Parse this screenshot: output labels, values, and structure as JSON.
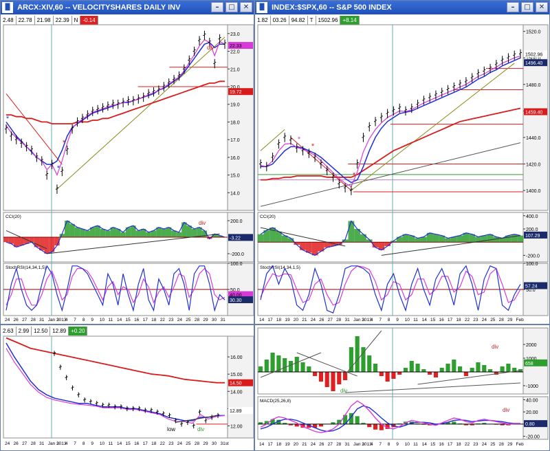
{
  "windows": [
    {
      "id": "xiv",
      "title": "ARCX:XIV,60 -- VELOCITYSHARES DAILY INV",
      "ohlc": [
        "2.48",
        "22.78",
        "21.98",
        "22.39",
        "N",
        "-0.14"
      ]
    },
    {
      "id": "spx",
      "title": "INDEX:$SPX,60 -- S&P 500 INDEX",
      "ohlc": [
        "1.82",
        "03.26",
        "94.82",
        "T",
        "1502.96",
        "+8.14"
      ]
    },
    {
      "id": "vix",
      "title": "",
      "ohlc": [
        "2.63",
        "2.99",
        "12.50",
        "12.89",
        "+0.20"
      ]
    }
  ],
  "colors": {
    "price": "#000000",
    "ma_blue": "#1f2fd8",
    "ma_pink": "#d83ad8",
    "ma_red": "#d81c1c",
    "trend_olive": "#8a8a1a",
    "hist_green": "#2e9e2e",
    "hist_red": "#e02020",
    "cyan": "#5fb0b0"
  },
  "chart_data": [
    {
      "type": "line",
      "panel": "xiv-price",
      "title": "ARCX:XIV,60 -- VELOCITYSHARES DAILY INV",
      "ylim": [
        13,
        23.5
      ],
      "yticks": [
        14.0,
        15.0,
        16.0,
        17.0,
        18.0,
        19.0,
        20.0,
        21.0,
        22.0,
        23.0
      ],
      "price_labels": [
        "22.33",
        "19.72"
      ],
      "annotations": [
        "div"
      ],
      "price": [
        17.6,
        17.2,
        17.0,
        16.8,
        16.6,
        16.4,
        16.0,
        15.8,
        15.0,
        15.6,
        14.2,
        15.2,
        16.4,
        17.6,
        18.0,
        18.2,
        18.4,
        18.6,
        18.7,
        18.8,
        18.9,
        19.0,
        19.0,
        19.1,
        19.2,
        19.2,
        19.3,
        19.4,
        19.6,
        19.7,
        19.8,
        20.0,
        20.2,
        20.4,
        20.6,
        21.0,
        21.5,
        22.0,
        22.6,
        22.9,
        22.5,
        21.3,
        22.7,
        22.4
      ],
      "ma_blue": [
        18.0,
        17.6,
        17.2,
        16.9,
        16.6,
        16.3,
        16.0,
        15.8,
        15.6,
        15.6,
        15.8,
        16.4,
        17.2,
        17.7,
        17.9,
        18.1,
        18.3,
        18.5,
        18.6,
        18.7,
        18.8,
        18.9,
        19.0,
        19.1,
        19.1,
        19.2,
        19.3,
        19.4,
        19.5,
        19.6,
        19.8,
        19.9,
        20.1,
        20.3,
        20.5,
        20.8,
        21.2,
        21.6,
        22.0,
        22.4,
        22.5,
        22.2,
        22.4,
        22.4
      ],
      "ma_red": [
        18.4,
        18.4,
        18.3,
        18.3,
        18.2,
        18.2,
        18.1,
        18.0,
        18.0,
        17.9,
        17.9,
        17.9,
        17.9,
        17.9,
        18.0,
        18.0,
        18.0,
        18.1,
        18.1,
        18.2,
        18.2,
        18.3,
        18.4,
        18.5,
        18.6,
        18.7,
        18.8,
        18.9,
        19.0,
        19.1,
        19.2,
        19.3,
        19.4,
        19.5,
        19.6,
        19.7,
        19.8,
        19.9,
        20.0,
        20.1,
        20.2,
        20.2,
        20.3,
        20.3
      ]
    },
    {
      "type": "area",
      "panel": "xiv-cci",
      "title": "CCI(20)",
      "ylim": [
        -300,
        300
      ],
      "yticks": [
        200.0,
        -200.0
      ],
      "price_labels": [
        "-3.22"
      ],
      "annotations": [
        "div"
      ],
      "values": [
        -60,
        -80,
        -120,
        -100,
        -80,
        -60,
        -120,
        -160,
        -200,
        -180,
        -100,
        40,
        200,
        160,
        120,
        100,
        80,
        120,
        140,
        100,
        80,
        120,
        100,
        60,
        120,
        140,
        80,
        100,
        60,
        80,
        120,
        100,
        120,
        80,
        60,
        180,
        140,
        100,
        120,
        80,
        -20,
        40,
        20,
        0
      ]
    },
    {
      "type": "line",
      "panel": "xiv-stochrsi",
      "title": "StochRSI(14,34,1,5)",
      "ylim": [
        0,
        100
      ],
      "yticks": [
        100.0,
        50.0
      ],
      "price_labels": [
        "40.00",
        "30.30"
      ],
      "values": [
        10,
        60,
        90,
        50,
        20,
        10,
        20,
        60,
        95,
        80,
        40,
        10,
        50,
        95,
        95,
        90,
        80,
        60,
        40,
        20,
        80,
        60,
        20,
        80,
        40,
        10,
        60,
        90,
        30,
        10,
        70,
        50,
        20,
        80,
        90,
        60,
        10,
        80,
        95,
        95,
        60,
        10,
        40,
        30
      ],
      "signal": [
        20,
        40,
        70,
        70,
        40,
        20,
        20,
        40,
        70,
        85,
        60,
        30,
        40,
        75,
        90,
        90,
        85,
        70,
        50,
        30,
        55,
        65,
        40,
        55,
        50,
        25,
        40,
        70,
        55,
        25,
        45,
        55,
        35,
        55,
        80,
        75,
        35,
        50,
        80,
        90,
        80,
        40,
        30,
        35
      ],
      "xticks": [
        "24",
        "26",
        "27",
        "28",
        "31",
        "Jan 2013",
        "3",
        "4",
        "7",
        "8",
        "9",
        "10",
        "11",
        "14",
        "15",
        "16",
        "17",
        "18",
        "22",
        "23",
        "24",
        "25",
        "28",
        "29",
        "30",
        "31"
      ]
    },
    {
      "type": "line",
      "panel": "spx-price",
      "title": "INDEX:$SPX,60 -- S&P 500 INDEX",
      "ylim": [
        1385,
        1525
      ],
      "yticks": [
        1400.0,
        1420.0,
        1440.0,
        1460.0,
        1480.0,
        1500.0,
        1520.0
      ],
      "price_labels": [
        "1502.96",
        "1496.40",
        "1459.40"
      ],
      "price": [
        1420,
        1418,
        1425,
        1435,
        1440,
        1438,
        1432,
        1430,
        1428,
        1425,
        1420,
        1415,
        1410,
        1405,
        1402,
        1400,
        1420,
        1440,
        1448,
        1452,
        1455,
        1458,
        1460,
        1462,
        1460,
        1462,
        1465,
        1468,
        1470,
        1472,
        1474,
        1476,
        1478,
        1480,
        1482,
        1485,
        1488,
        1490,
        1492,
        1495,
        1498,
        1500,
        1502,
        1503
      ],
      "ma_blue": [
        1418,
        1418,
        1420,
        1425,
        1430,
        1433,
        1433,
        1432,
        1430,
        1428,
        1425,
        1421,
        1417,
        1413,
        1409,
        1406,
        1408,
        1418,
        1430,
        1440,
        1447,
        1452,
        1455,
        1458,
        1459,
        1460,
        1462,
        1464,
        1466,
        1468,
        1470,
        1472,
        1474,
        1476,
        1478,
        1481,
        1484,
        1486,
        1489,
        1491,
        1494,
        1496,
        1498,
        1500
      ],
      "ma_red": [
        1408,
        1408,
        1409,
        1409,
        1410,
        1410,
        1411,
        1411,
        1411,
        1411,
        1411,
        1410,
        1410,
        1410,
        1410,
        1410,
        1412,
        1415,
        1418,
        1421,
        1424,
        1427,
        1430,
        1432,
        1434,
        1436,
        1438,
        1440,
        1442,
        1444,
        1446,
        1448,
        1450,
        1452,
        1453,
        1454,
        1455,
        1456,
        1457,
        1458,
        1459,
        1460,
        1461,
        1462
      ]
    },
    {
      "type": "area",
      "panel": "spx-cci",
      "title": "CCI(20)",
      "ylim": [
        -300,
        450
      ],
      "yticks": [
        400.0,
        200.0,
        -200.0
      ],
      "price_labels": [
        "107.29"
      ],
      "values": [
        120,
        180,
        220,
        160,
        100,
        60,
        -40,
        -120,
        -160,
        -200,
        -140,
        -80,
        -60,
        -40,
        40,
        320,
        200,
        120,
        40,
        -80,
        -120,
        -60,
        20,
        80,
        120,
        100,
        60,
        80,
        140,
        120,
        100,
        60,
        80,
        100,
        140,
        120,
        80,
        100,
        120,
        80,
        60,
        100,
        120,
        100
      ]
    },
    {
      "type": "line",
      "panel": "spx-stochrsi",
      "title": "StochRSI(14,34,1,5)",
      "ylim": [
        0,
        100
      ],
      "yticks": [
        100.0,
        50.0
      ],
      "price_labels": [
        "57.24"
      ],
      "values": [
        30,
        80,
        95,
        60,
        90,
        70,
        20,
        10,
        40,
        90,
        60,
        10,
        5,
        40,
        90,
        95,
        95,
        90,
        80,
        40,
        10,
        60,
        80,
        40,
        10,
        60,
        90,
        50,
        20,
        70,
        90,
        60,
        20,
        80,
        95,
        60,
        10,
        70,
        95,
        90,
        20,
        10,
        40,
        60
      ],
      "signal": [
        35,
        60,
        80,
        75,
        80,
        78,
        50,
        25,
        30,
        60,
        70,
        40,
        20,
        25,
        60,
        85,
        95,
        93,
        88,
        65,
        30,
        40,
        65,
        60,
        30,
        40,
        70,
        70,
        40,
        50,
        75,
        75,
        45,
        55,
        85,
        75,
        40,
        45,
        80,
        90,
        60,
        25,
        30,
        50
      ],
      "xticks": [
        "14",
        "17",
        "18",
        "19",
        "20",
        "21",
        "24",
        "26",
        "27",
        "28",
        "31",
        "Jan 2013",
        "3",
        "4",
        "7",
        "8",
        "9",
        "10",
        "11",
        "14",
        "15",
        "16",
        "17",
        "18",
        "22",
        "23",
        "24",
        "25",
        "28",
        "29",
        "Feb"
      ]
    },
    {
      "type": "line",
      "panel": "vix-price",
      "title": "",
      "ylim": [
        11.3,
        17.2
      ],
      "yticks": [
        12.0,
        13.0,
        14.0,
        15.0,
        16.0
      ],
      "price_labels": [
        "14.50",
        "12.89"
      ],
      "annotations": [
        "low",
        "div"
      ],
      "price": [
        16.2,
        15.4,
        14.8,
        14.2,
        13.8,
        13.5,
        13.4,
        13.3,
        13.2,
        13.2,
        13.1,
        13.1,
        13.0,
        13.0,
        13.0,
        12.9,
        12.9,
        12.8,
        12.7,
        12.6,
        12.3,
        12.1,
        12.2,
        12.0,
        12.8,
        12.3,
        12.5,
        12.6
      ],
      "ma_blue": [
        16.8,
        16.0,
        15.3,
        14.6,
        14.1,
        13.8,
        13.6,
        13.5,
        13.4,
        13.3,
        13.3,
        13.2,
        13.1,
        13.1,
        13.1,
        13.0,
        13.0,
        12.9,
        12.8,
        12.7,
        12.5,
        12.4,
        12.3,
        12.3,
        12.5,
        12.5,
        12.6,
        12.6
      ],
      "ma_red": [
        17.1,
        16.9,
        16.7,
        16.5,
        16.4,
        16.3,
        16.2,
        16.1,
        16.0,
        15.9,
        15.8,
        15.7,
        15.6,
        15.5,
        15.4,
        15.3,
        15.2,
        15.1,
        15.0,
        14.95,
        14.9,
        14.8,
        14.7,
        14.65,
        14.6,
        14.55,
        14.5,
        14.5
      ],
      "xticks": [
        "24",
        "26",
        "27",
        "28",
        "31",
        "Jan 2013",
        "3",
        "4",
        "7",
        "8",
        "9",
        "10",
        "11",
        "14",
        "15",
        "16",
        "17",
        "18",
        "22",
        "23",
        "24",
        "25",
        "28",
        "29",
        "30",
        "31st"
      ]
    },
    {
      "type": "bar",
      "panel": "spx-histogram",
      "title": "",
      "annotations": [
        "div",
        "div"
      ],
      "ylim": [
        -1600,
        3200
      ],
      "yticks": [
        2000,
        1000,
        -1000
      ],
      "price_labels": [
        "658"
      ],
      "values": [
        400,
        900,
        1400,
        1200,
        1000,
        800,
        1100,
        700,
        400,
        -300,
        -700,
        -1100,
        -1400,
        -900,
        -600,
        1800,
        2600,
        1800,
        1200,
        600,
        -300,
        -700,
        -500,
        -200,
        300,
        800,
        600,
        200,
        -200,
        -400,
        300,
        600,
        900,
        400,
        -300,
        300,
        700,
        500,
        200,
        -200,
        400,
        600,
        300,
        200
      ]
    },
    {
      "type": "line",
      "panel": "spx-macd",
      "title": "MACD(25,26,8)",
      "annotations": [
        "div"
      ],
      "ylim": [
        -25,
        45
      ],
      "yticks": [
        40.0,
        20.0,
        0.0,
        -20.0
      ],
      "price_labels": [
        "0.80"
      ],
      "macd": [
        -5,
        0,
        8,
        12,
        10,
        6,
        2,
        -4,
        -8,
        -12,
        -14,
        -12,
        -8,
        0,
        15,
        30,
        38,
        32,
        22,
        10,
        0,
        -6,
        -8,
        -4,
        2,
        6,
        4,
        2,
        0,
        -2,
        2,
        6,
        10,
        8,
        4,
        2,
        6,
        8,
        6,
        4,
        2,
        0,
        1,
        1
      ],
      "signal": [
        -8,
        -5,
        0,
        5,
        8,
        8,
        6,
        2,
        -2,
        -6,
        -10,
        -12,
        -11,
        -7,
        0,
        12,
        25,
        30,
        27,
        19,
        10,
        2,
        -3,
        -5,
        -2,
        2,
        3,
        3,
        2,
        0,
        1,
        3,
        6,
        7,
        6,
        4,
        5,
        6,
        6,
        5,
        4,
        2,
        1,
        1
      ],
      "histogram": [
        3,
        5,
        8,
        7,
        2,
        -2,
        -4,
        -6,
        -6,
        -6,
        -4,
        0,
        3,
        7,
        15,
        18,
        13,
        2,
        -5,
        -9,
        -10,
        -8,
        -5,
        1,
        4,
        4,
        1,
        -1,
        -2,
        -2,
        1,
        3,
        4,
        1,
        -2,
        -2,
        1,
        2,
        0,
        -1,
        -2,
        -2,
        0,
        0
      ],
      "xticks": [
        "14",
        "17",
        "18",
        "19",
        "20",
        "21",
        "24",
        "26",
        "27",
        "28",
        "31",
        "Jan 2013",
        "3",
        "4",
        "7",
        "8",
        "9",
        "10",
        "11",
        "14",
        "15",
        "16",
        "17",
        "18",
        "22",
        "23",
        "24",
        "25",
        "28",
        "29",
        "Feb"
      ]
    }
  ]
}
